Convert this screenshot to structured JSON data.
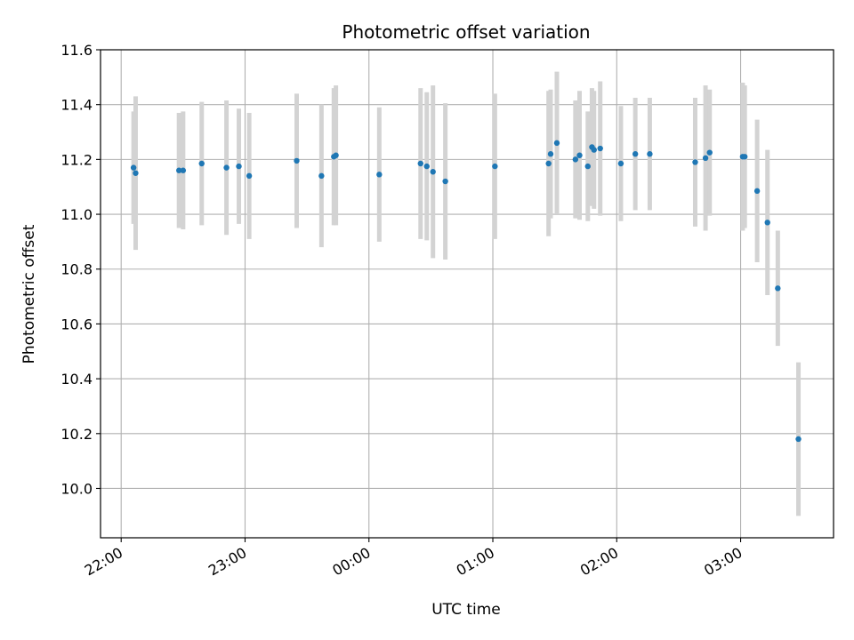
{
  "chart_data": {
    "type": "scatter",
    "title": "Photometric offset variation",
    "xlabel": "UTC time",
    "ylabel": "Photometric offset",
    "x_axis_kind": "time (HH:MM)",
    "xlim": [
      "21:50",
      "03:45"
    ],
    "ylim": [
      9.82,
      11.6
    ],
    "x_ticks": [
      "22:00",
      "23:00",
      "00:00",
      "01:00",
      "02:00",
      "03:00"
    ],
    "y_ticks": [
      "10.0",
      "10.2",
      "10.4",
      "10.6",
      "10.8",
      "11.0",
      "11.2",
      "11.4",
      "11.6"
    ],
    "grid": true,
    "legend": "none",
    "colors": {
      "points": "#1f77b4",
      "errorbars": "#d3d3d3",
      "grid": "#b0b0b0"
    },
    "series": [
      {
        "points": [
          {
            "x": "22:06",
            "y": 11.17,
            "err": 0.205
          },
          {
            "x": "22:07",
            "y": 11.15,
            "err": 0.28
          },
          {
            "x": "22:28",
            "y": 11.16,
            "err": 0.21
          },
          {
            "x": "22:30",
            "y": 11.16,
            "err": 0.215
          },
          {
            "x": "22:39",
            "y": 11.185,
            "err": 0.225
          },
          {
            "x": "22:51",
            "y": 11.17,
            "err": 0.245
          },
          {
            "x": "22:57",
            "y": 11.175,
            "err": 0.21
          },
          {
            "x": "23:02",
            "y": 11.14,
            "err": 0.23
          },
          {
            "x": "23:25",
            "y": 11.195,
            "err": 0.245
          },
          {
            "x": "23:37",
            "y": 11.14,
            "err": 0.26
          },
          {
            "x": "23:43",
            "y": 11.21,
            "err": 0.25
          },
          {
            "x": "23:44",
            "y": 11.215,
            "err": 0.255
          },
          {
            "x": "00:05",
            "y": 11.145,
            "err": 0.245
          },
          {
            "x": "00:25",
            "y": 11.185,
            "err": 0.275
          },
          {
            "x": "00:28",
            "y": 11.175,
            "err": 0.27
          },
          {
            "x": "00:31",
            "y": 11.155,
            "err": 0.315
          },
          {
            "x": "00:37",
            "y": 11.12,
            "err": 0.285
          },
          {
            "x": "01:01",
            "y": 11.175,
            "err": 0.265
          },
          {
            "x": "01:27",
            "y": 11.185,
            "err": 0.265
          },
          {
            "x": "01:28",
            "y": 11.22,
            "err": 0.235
          },
          {
            "x": "01:31",
            "y": 11.26,
            "err": 0.26
          },
          {
            "x": "01:40",
            "y": 11.2,
            "err": 0.215
          },
          {
            "x": "01:42",
            "y": 11.215,
            "err": 0.235
          },
          {
            "x": "01:46",
            "y": 11.175,
            "err": 0.2
          },
          {
            "x": "01:48",
            "y": 11.245,
            "err": 0.215
          },
          {
            "x": "01:49",
            "y": 11.235,
            "err": 0.215
          },
          {
            "x": "01:52",
            "y": 11.24,
            "err": 0.245
          },
          {
            "x": "02:02",
            "y": 11.185,
            "err": 0.21
          },
          {
            "x": "02:09",
            "y": 11.22,
            "err": 0.205
          },
          {
            "x": "02:16",
            "y": 11.22,
            "err": 0.205
          },
          {
            "x": "02:38",
            "y": 11.19,
            "err": 0.235
          },
          {
            "x": "02:43",
            "y": 11.205,
            "err": 0.265
          },
          {
            "x": "02:45",
            "y": 11.225,
            "err": 0.23
          },
          {
            "x": "03:01",
            "y": 11.21,
            "err": 0.27
          },
          {
            "x": "03:02",
            "y": 11.21,
            "err": 0.26
          },
          {
            "x": "03:08",
            "y": 11.085,
            "err": 0.26
          },
          {
            "x": "03:13",
            "y": 10.97,
            "err": 0.265
          },
          {
            "x": "03:18",
            "y": 10.73,
            "err": 0.21
          },
          {
            "x": "03:28",
            "y": 10.18,
            "err": 0.28
          }
        ]
      }
    ]
  }
}
